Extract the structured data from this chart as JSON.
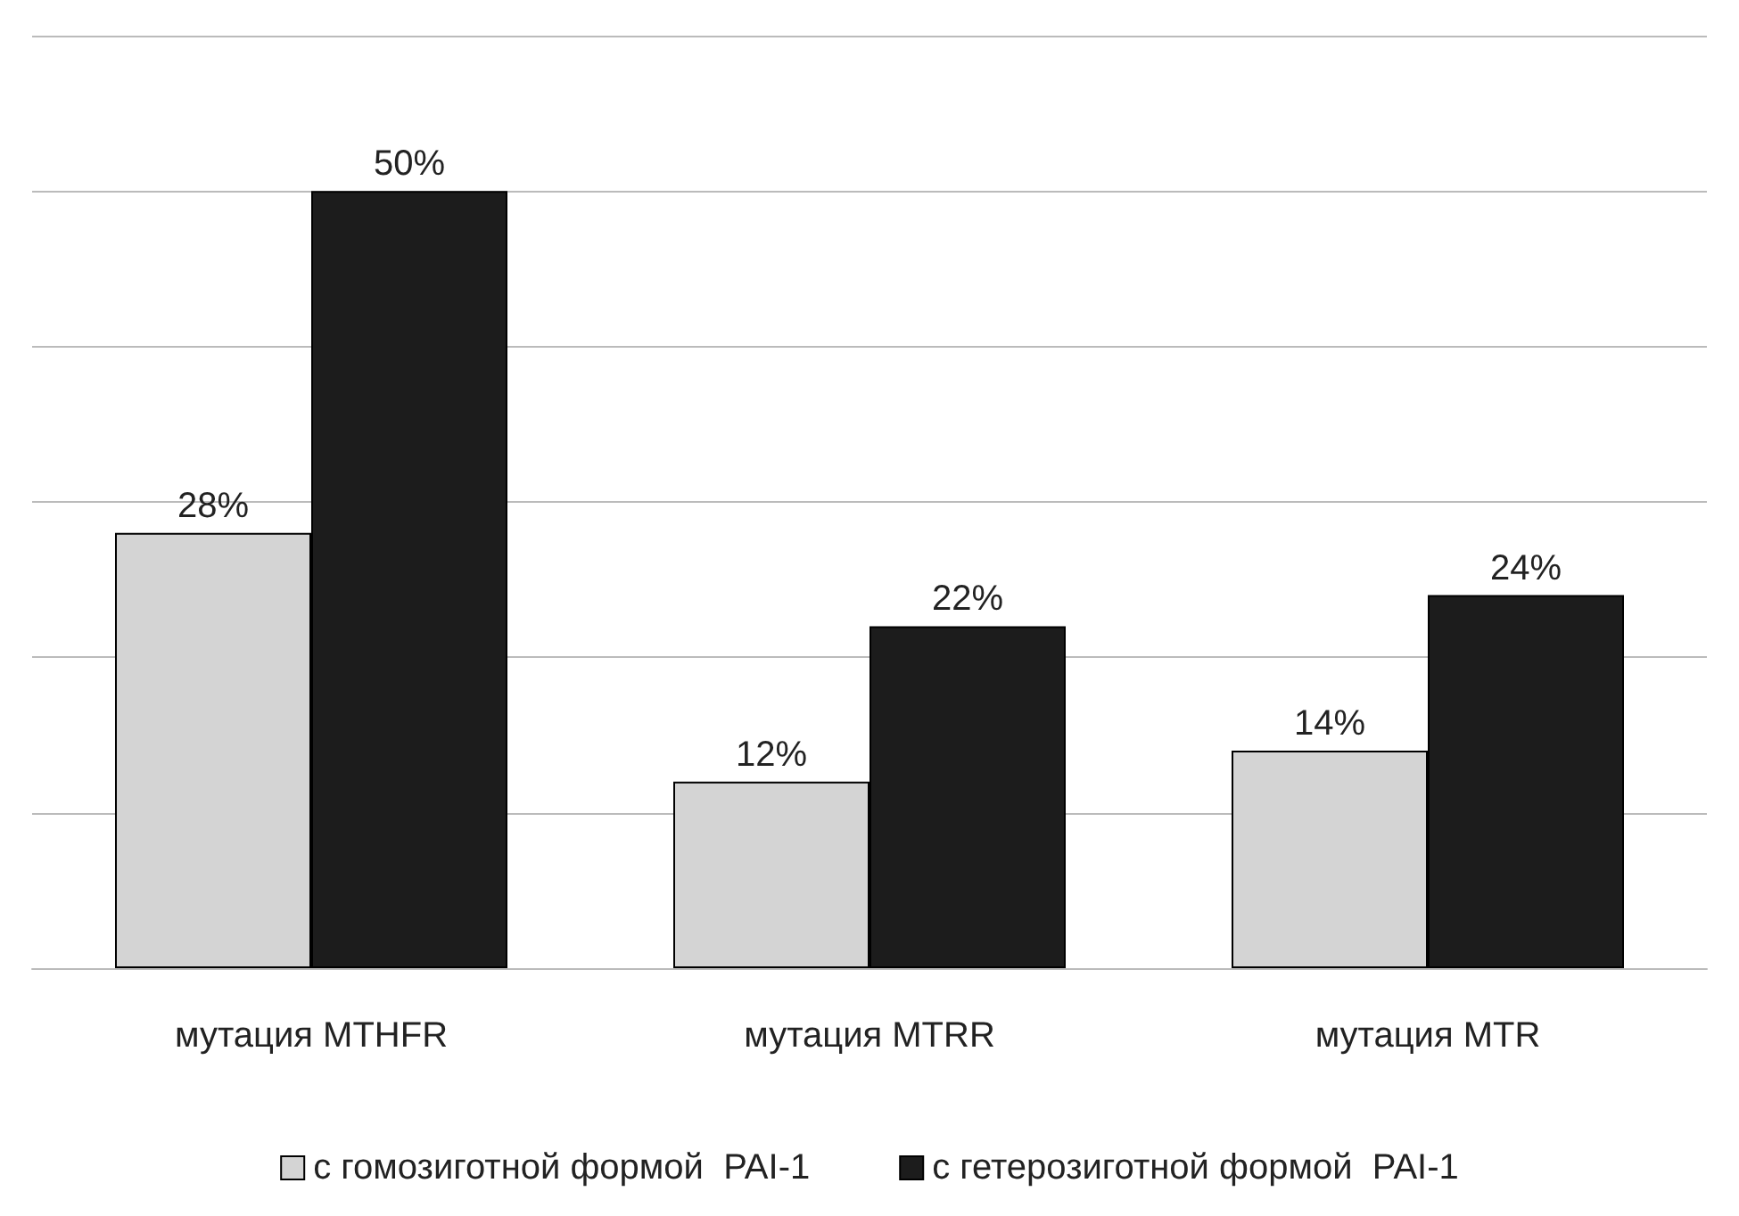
{
  "chart_data": {
    "type": "bar",
    "categories": [
      "мутация MTHFR",
      "мутация MTRR",
      "мутация MTR"
    ],
    "series": [
      {
        "name": "с гомозиготной формой  PAI-1",
        "color": "#d4d4d4",
        "values": [
          28,
          12,
          14
        ],
        "value_labels": [
          "28%",
          "12%",
          "14%"
        ]
      },
      {
        "name": "с гетерозиготной формой  PAI-1",
        "color": "#1c1c1c",
        "values": [
          50,
          22,
          24
        ],
        "value_labels": [
          "50%",
          "22%",
          "24%"
        ]
      }
    ],
    "ylim": [
      0,
      60
    ],
    "yticks": [
      0,
      10,
      20,
      30,
      40,
      50,
      60
    ],
    "tick_labels": "x",
    "grid": "y",
    "legend": "bottom"
  }
}
